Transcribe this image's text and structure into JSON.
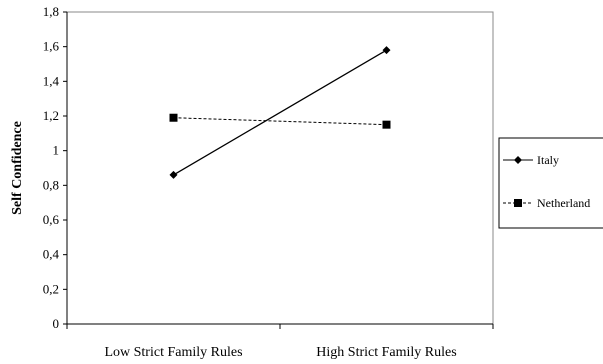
{
  "chart_data": {
    "type": "line",
    "categories": [
      "Low Strict Family Rules",
      "High Strict Family Rules"
    ],
    "series": [
      {
        "name": "Italy",
        "values": [
          0.86,
          1.58
        ],
        "marker": "diamond",
        "line": "solid",
        "color": "#000000"
      },
      {
        "name": "Netherland",
        "values": [
          1.19,
          1.15
        ],
        "marker": "square",
        "line": "dashed",
        "color": "#000000"
      }
    ],
    "ylabel": "Self Confidence",
    "xlabel": "",
    "ylim": [
      0,
      1.8
    ],
    "yticks": [
      "0",
      "0,2",
      "0,4",
      "0,6",
      "0,8",
      "1",
      "1,2",
      "1,4",
      "1,6",
      "1,8"
    ],
    "grid": false,
    "legend_position": "right"
  }
}
